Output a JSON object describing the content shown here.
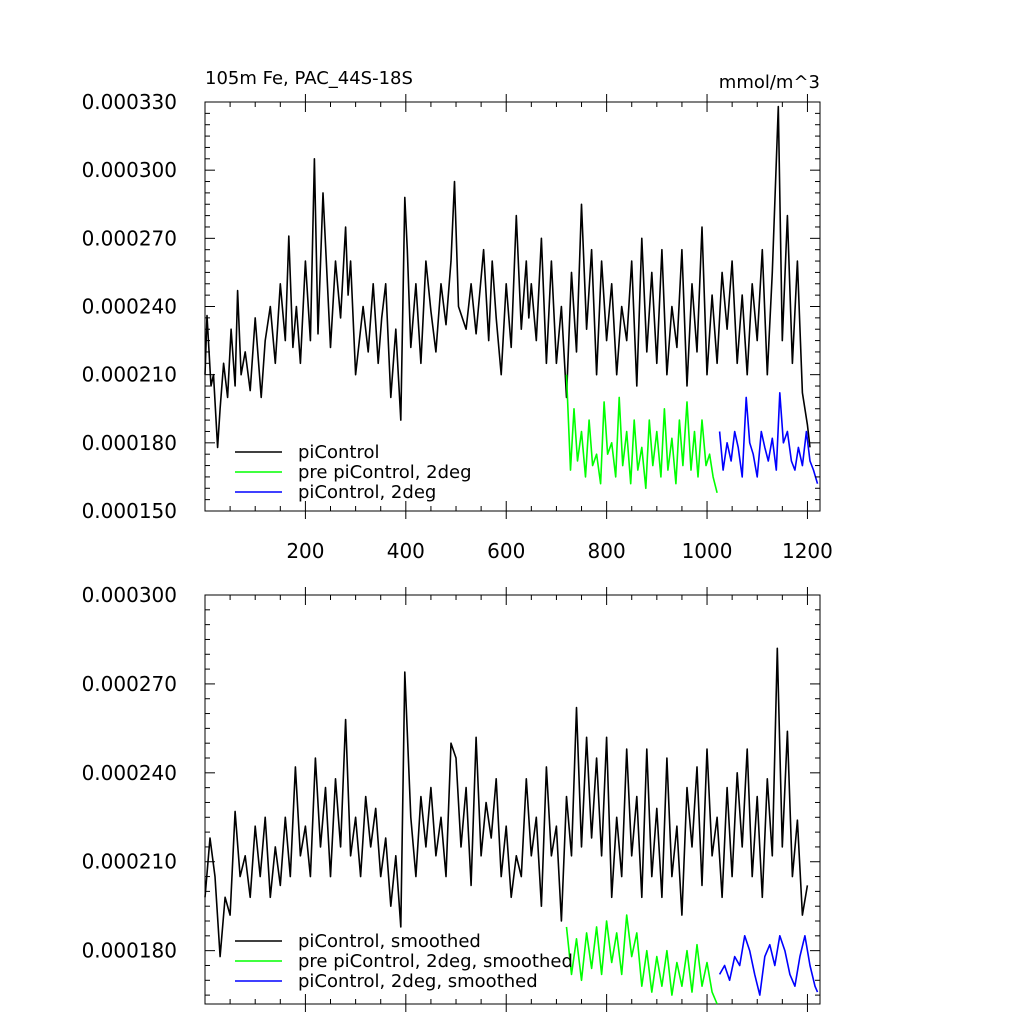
{
  "chart_data": [
    {
      "type": "line",
      "title": "105m Fe, PAC_44S-18S",
      "units": "mmol/m^3",
      "xlim": [
        0,
        1225
      ],
      "ylim": [
        0.00015,
        0.00033
      ],
      "xticks": [
        200,
        400,
        600,
        800,
        1000,
        1200
      ],
      "xtick_labels": [
        "200",
        "400",
        "600",
        "800",
        "1000",
        "1200"
      ],
      "yticks": [
        0.00015,
        0.00018,
        0.00021,
        0.00024,
        0.00027,
        0.0003,
        0.00033
      ],
      "ytick_labels": [
        "0.000150",
        "0.000180",
        "0.000210",
        "0.000240",
        "0.000270",
        "0.000300",
        "0.000330"
      ],
      "legend_position": "bottom-left",
      "series": [
        {
          "name": "piControl",
          "color": "#000000",
          "x": [
            0,
            4,
            12,
            17,
            25,
            30,
            37,
            45,
            52,
            60,
            65,
            72,
            80,
            90,
            100,
            112,
            120,
            130,
            140,
            150,
            160,
            167,
            175,
            182,
            190,
            200,
            210,
            218,
            225,
            235,
            250,
            260,
            270,
            280,
            285,
            290,
            300,
            315,
            325,
            335,
            345,
            352,
            360,
            370,
            380,
            390,
            398,
            403,
            410,
            420,
            430,
            440,
            450,
            460,
            470,
            480,
            490,
            497,
            505,
            520,
            530,
            540,
            555,
            565,
            572,
            580,
            590,
            600,
            610,
            620,
            630,
            640,
            645,
            650,
            660,
            670,
            680,
            690,
            700,
            710,
            720,
            730,
            740,
            750,
            760,
            770,
            780,
            790,
            800,
            810,
            820,
            830,
            840,
            850,
            860,
            870,
            880,
            890,
            900,
            910,
            920,
            930,
            940,
            950,
            960,
            970,
            980,
            990,
            1000,
            1010,
            1020,
            1030,
            1040,
            1050,
            1060,
            1070,
            1080,
            1090,
            1100,
            1110,
            1120,
            1130,
            1142,
            1150,
            1160,
            1170,
            1180,
            1190,
            1200,
            1205
          ],
          "y": [
            0.00021,
            0.000236,
            0.000205,
            0.00021,
            0.000178,
            0.000195,
            0.000215,
            0.0002,
            0.00023,
            0.000205,
            0.000247,
            0.00021,
            0.00022,
            0.000203,
            0.000235,
            0.0002,
            0.000225,
            0.00024,
            0.000215,
            0.00025,
            0.000225,
            0.000271,
            0.000222,
            0.00024,
            0.000215,
            0.00026,
            0.000225,
            0.000305,
            0.000228,
            0.00029,
            0.000222,
            0.00026,
            0.000235,
            0.000275,
            0.000245,
            0.00026,
            0.00021,
            0.00024,
            0.00022,
            0.00025,
            0.000215,
            0.000235,
            0.00025,
            0.0002,
            0.00023,
            0.00019,
            0.000288,
            0.000265,
            0.000222,
            0.00025,
            0.000215,
            0.00026,
            0.000238,
            0.00022,
            0.00025,
            0.000232,
            0.00026,
            0.000295,
            0.00024,
            0.00023,
            0.00025,
            0.000228,
            0.000265,
            0.000225,
            0.00026,
            0.000235,
            0.00021,
            0.00025,
            0.000222,
            0.00028,
            0.00023,
            0.00026,
            0.000235,
            0.00025,
            0.000225,
            0.00027,
            0.000215,
            0.00026,
            0.000215,
            0.00024,
            0.0002,
            0.000255,
            0.00022,
            0.000285,
            0.00023,
            0.000265,
            0.00021,
            0.00026,
            0.000225,
            0.00025,
            0.00021,
            0.00024,
            0.000225,
            0.00026,
            0.000205,
            0.00027,
            0.00022,
            0.000255,
            0.000215,
            0.000265,
            0.00021,
            0.00024,
            0.000222,
            0.000265,
            0.000205,
            0.00025,
            0.00022,
            0.000275,
            0.00021,
            0.000245,
            0.000215,
            0.000255,
            0.00023,
            0.00026,
            0.000215,
            0.000245,
            0.00021,
            0.00025,
            0.000225,
            0.000265,
            0.00021,
            0.000255,
            0.000328,
            0.000225,
            0.00028,
            0.000215,
            0.00026,
            0.000202,
            0.000188,
            0.000178
          ]
        },
        {
          "name": "pre piControl, 2deg",
          "color": "#00ff00",
          "x": [
            720,
            728,
            735,
            742,
            750,
            758,
            765,
            772,
            780,
            788,
            795,
            802,
            810,
            818,
            825,
            832,
            840,
            848,
            855,
            862,
            870,
            878,
            885,
            892,
            900,
            908,
            915,
            922,
            930,
            938,
            945,
            952,
            960,
            968,
            975,
            982,
            990,
            998,
            1005,
            1012,
            1020
          ],
          "y": [
            0.00021,
            0.000168,
            0.000195,
            0.000172,
            0.000185,
            0.000165,
            0.00019,
            0.00017,
            0.000175,
            0.000162,
            0.000198,
            0.000175,
            0.00018,
            0.000165,
            0.0002,
            0.00017,
            0.000185,
            0.000162,
            0.00019,
            0.000168,
            0.000178,
            0.00016,
            0.00019,
            0.00017,
            0.000185,
            0.000165,
            0.000195,
            0.000168,
            0.000182,
            0.000162,
            0.00019,
            0.00017,
            0.000198,
            0.000168,
            0.000185,
            0.000165,
            0.00019,
            0.00017,
            0.000175,
            0.000165,
            0.000158
          ]
        },
        {
          "name": "piControl, 2deg",
          "color": "#0000ff",
          "x": [
            1025,
            1032,
            1040,
            1048,
            1055,
            1062,
            1070,
            1078,
            1085,
            1092,
            1100,
            1108,
            1115,
            1122,
            1130,
            1138,
            1145,
            1152,
            1160,
            1168,
            1175,
            1182,
            1190,
            1198,
            1205,
            1212,
            1220
          ],
          "y": [
            0.000185,
            0.000168,
            0.00018,
            0.000172,
            0.000185,
            0.000178,
            0.000165,
            0.0002,
            0.00018,
            0.000175,
            0.000165,
            0.000185,
            0.000178,
            0.000172,
            0.000182,
            0.000168,
            0.000202,
            0.00018,
            0.000185,
            0.000172,
            0.000168,
            0.000178,
            0.00017,
            0.000185,
            0.000172,
            0.000168,
            0.000162
          ]
        }
      ]
    },
    {
      "type": "line",
      "xlim": [
        0,
        1225
      ],
      "ylim": [
        0.000162,
        0.0003
      ],
      "yticks": [
        0.00018,
        0.00021,
        0.00024,
        0.00027,
        0.0003
      ],
      "ytick_labels": [
        "0.000180",
        "0.000210",
        "0.000240",
        "0.000270",
        "0.000300"
      ],
      "legend_position": "bottom-left",
      "series": [
        {
          "name": "piControl, smoothed",
          "color": "#000000",
          "x": [
            0,
            10,
            20,
            30,
            40,
            50,
            60,
            70,
            80,
            90,
            100,
            110,
            120,
            130,
            140,
            150,
            160,
            170,
            180,
            190,
            200,
            210,
            220,
            230,
            240,
            250,
            260,
            270,
            280,
            290,
            300,
            310,
            320,
            330,
            340,
            350,
            360,
            370,
            380,
            390,
            398,
            410,
            420,
            430,
            440,
            450,
            460,
            470,
            480,
            490,
            500,
            510,
            520,
            530,
            540,
            550,
            560,
            570,
            580,
            590,
            600,
            610,
            620,
            630,
            640,
            650,
            660,
            670,
            680,
            690,
            700,
            710,
            720,
            730,
            740,
            750,
            760,
            770,
            780,
            790,
            800,
            810,
            820,
            830,
            840,
            850,
            860,
            870,
            880,
            890,
            900,
            910,
            920,
            930,
            940,
            950,
            960,
            970,
            980,
            990,
            1000,
            1010,
            1020,
            1030,
            1040,
            1050,
            1060,
            1070,
            1080,
            1090,
            1100,
            1110,
            1120,
            1130,
            1140,
            1150,
            1160,
            1170,
            1180,
            1190,
            1200
          ],
          "y": [
            0.000198,
            0.000218,
            0.000205,
            0.000178,
            0.000198,
            0.000192,
            0.000227,
            0.000205,
            0.000212,
            0.000198,
            0.000222,
            0.000205,
            0.000225,
            0.000198,
            0.000215,
            0.000202,
            0.000225,
            0.000205,
            0.000242,
            0.000212,
            0.000222,
            0.000205,
            0.000245,
            0.000215,
            0.000235,
            0.000205,
            0.000238,
            0.000215,
            0.000258,
            0.000212,
            0.000225,
            0.000205,
            0.000232,
            0.000215,
            0.000228,
            0.000205,
            0.000218,
            0.000195,
            0.000212,
            0.000188,
            0.000274,
            0.000225,
            0.000205,
            0.000232,
            0.000215,
            0.000235,
            0.000212,
            0.000225,
            0.000205,
            0.00025,
            0.000245,
            0.000215,
            0.000235,
            0.000202,
            0.000252,
            0.000212,
            0.00023,
            0.000218,
            0.000238,
            0.000205,
            0.000222,
            0.000198,
            0.000212,
            0.000205,
            0.000238,
            0.000212,
            0.000225,
            0.000195,
            0.000242,
            0.000212,
            0.000222,
            0.00019,
            0.000232,
            0.000212,
            0.000262,
            0.000215,
            0.000252,
            0.000218,
            0.000245,
            0.000212,
            0.000252,
            0.000198,
            0.000225,
            0.000205,
            0.000248,
            0.000212,
            0.000232,
            0.000198,
            0.000248,
            0.000205,
            0.000228,
            0.000198,
            0.000245,
            0.000205,
            0.000222,
            0.000192,
            0.000235,
            0.000215,
            0.000242,
            0.000202,
            0.000248,
            0.000212,
            0.000225,
            0.000198,
            0.000235,
            0.000205,
            0.00024,
            0.000215,
            0.000248,
            0.000205,
            0.000232,
            0.000198,
            0.000238,
            0.000212,
            0.000282,
            0.000215,
            0.000254,
            0.000205,
            0.000224,
            0.000192,
            0.000202
          ]
        },
        {
          "name": "pre piControl, 2deg, smoothed",
          "color": "#00ff00",
          "x": [
            720,
            730,
            740,
            750,
            760,
            770,
            780,
            790,
            800,
            810,
            820,
            830,
            840,
            850,
            860,
            870,
            880,
            890,
            900,
            910,
            920,
            930,
            940,
            950,
            960,
            970,
            980,
            990,
            1000,
            1010,
            1020
          ],
          "y": [
            0.000188,
            0.000172,
            0.000184,
            0.00017,
            0.000186,
            0.000174,
            0.000188,
            0.000172,
            0.00019,
            0.000176,
            0.000186,
            0.000172,
            0.000192,
            0.000178,
            0.000186,
            0.000168,
            0.00018,
            0.000166,
            0.000178,
            0.000168,
            0.00018,
            0.000165,
            0.000176,
            0.000168,
            0.00018,
            0.000166,
            0.000182,
            0.000168,
            0.000176,
            0.000166,
            0.000162
          ]
        },
        {
          "name": "piControl, 2deg, smoothed",
          "color": "#0000ff",
          "x": [
            1025,
            1035,
            1045,
            1055,
            1065,
            1075,
            1085,
            1095,
            1105,
            1115,
            1125,
            1135,
            1145,
            1155,
            1165,
            1175,
            1185,
            1195,
            1205,
            1215,
            1220
          ],
          "y": [
            0.000172,
            0.000175,
            0.00017,
            0.000178,
            0.000175,
            0.000185,
            0.00018,
            0.000172,
            0.000165,
            0.000178,
            0.000182,
            0.000175,
            0.000185,
            0.00018,
            0.000172,
            0.000168,
            0.000178,
            0.000185,
            0.000175,
            0.000168,
            0.000166
          ]
        }
      ]
    }
  ]
}
